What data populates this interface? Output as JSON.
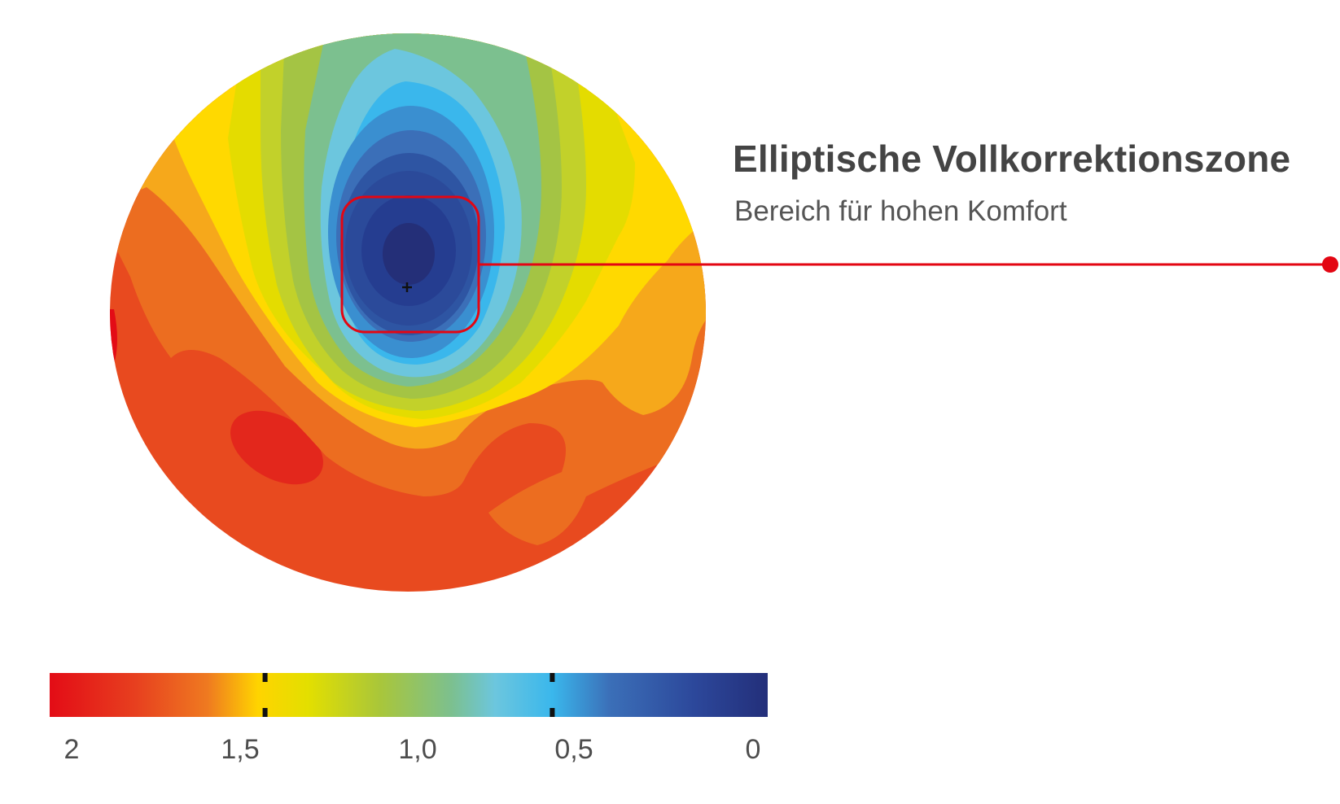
{
  "callout": {
    "title": "Elliptische Vollkorrektionszone",
    "subtitle": "Bereich für hohen Komfort"
  },
  "colors": {
    "highlight": "#e30613",
    "text_dark": "#444444",
    "scale_stops": [
      "#e30c16",
      "#ea4a1f",
      "#f39a1e",
      "#ffd400",
      "#e5e000",
      "#a9c63a",
      "#7cc08f",
      "#6cc6de",
      "#3ab7ec",
      "#3b78bf",
      "#2c4a9c",
      "#232f7a"
    ]
  },
  "scale": {
    "labels": [
      "2",
      "1,5",
      "1,0",
      "0,5",
      "0"
    ],
    "range": [
      2,
      0
    ],
    "markers": [
      1.4,
      0.6
    ]
  },
  "icons": {
    "center": "crosshair-icon"
  }
}
